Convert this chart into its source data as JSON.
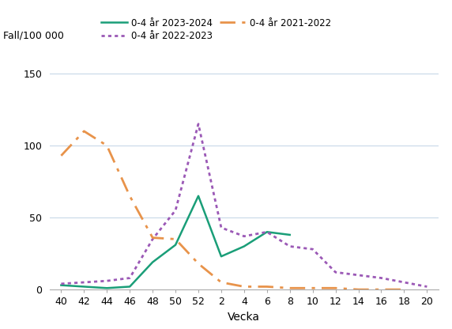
{
  "title": "",
  "ylabel": "Fall/100 000",
  "xlabel": "Vecka",
  "ylim": [
    0,
    160
  ],
  "yticks": [
    0,
    50,
    100,
    150
  ],
  "xtick_labels": [
    "40",
    "42",
    "44",
    "46",
    "48",
    "50",
    "52",
    "2",
    "4",
    "6",
    "8",
    "10",
    "12",
    "14",
    "16",
    "18",
    "20"
  ],
  "x_positions": [
    0,
    1,
    2,
    3,
    4,
    5,
    6,
    7,
    8,
    9,
    10,
    11,
    12,
    13,
    14,
    15,
    16
  ],
  "series": [
    {
      "label": "0-4 år 2023-2024",
      "color": "#1a9e78",
      "linestyle": "solid",
      "linewidth": 1.8,
      "values": [
        3,
        2,
        1,
        2,
        19,
        31,
        65,
        23,
        30,
        40,
        38,
        null,
        null,
        null,
        null,
        null,
        null
      ]
    },
    {
      "label": "0-4 år 2022-2023",
      "color": "#9b59b6",
      "linestyle": "dotted",
      "linewidth": 2.0,
      "values": [
        4,
        5,
        6,
        8,
        35,
        55,
        115,
        43,
        37,
        40,
        30,
        28,
        12,
        10,
        8,
        5,
        2
      ]
    },
    {
      "label": "0-4 år 2021-2022",
      "color": "#e8934a",
      "linestyle": "dashdot",
      "linewidth": 2.0,
      "values": [
        93,
        110,
        100,
        65,
        36,
        35,
        18,
        5,
        2,
        2,
        1,
        1,
        1,
        0,
        0,
        0,
        null
      ]
    }
  ],
  "grid_color": "#c8d8e8",
  "background_color": "#ffffff",
  "legend_rows": [
    [
      "0-4 år 2023-2024",
      "0-4 år 2022-2023"
    ],
    [
      "0-4 år 2021-2022"
    ]
  ]
}
